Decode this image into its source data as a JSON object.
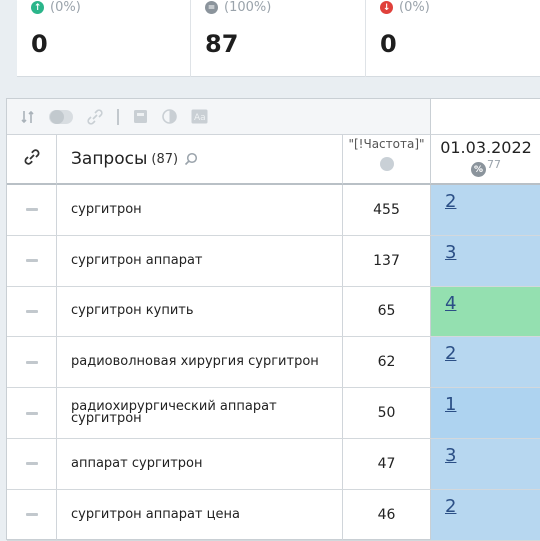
{
  "summary": [
    {
      "icon": "arrow-up-icon",
      "percent": "(0%)",
      "value": "0",
      "color": "#2bb58a"
    },
    {
      "icon": "equal-icon",
      "percent": "(100%)",
      "value": "87",
      "color": "#8b949c"
    },
    {
      "icon": "arrow-down-icon",
      "percent": "(0%)",
      "value": "0",
      "color": "#e0413b"
    }
  ],
  "table": {
    "query_header": "Запросы",
    "query_count": "(87)",
    "freq_header": "\"[!Частота]\"",
    "date_header": "01.03.2022",
    "date_pct_icon": "%",
    "date_pct_value": "77",
    "rows": [
      {
        "query": "сургитрон",
        "freq": "455",
        "pos": "2",
        "pos_color": "#b7d7f0"
      },
      {
        "query": "сургитрон аппарат",
        "freq": "137",
        "pos": "3",
        "pos_color": "#b7d7f0"
      },
      {
        "query": "сургитрон купить",
        "freq": "65",
        "pos": "4",
        "pos_color": "#94e0b0"
      },
      {
        "query": "радиоволновая хирургия сургитрон",
        "freq": "62",
        "pos": "2",
        "pos_color": "#b7d7f0"
      },
      {
        "query": "радиохирургический аппарат сургитрон",
        "freq": "50",
        "pos": "1",
        "pos_color": "#aed3f0"
      },
      {
        "query": "аппарат сургитрон",
        "freq": "47",
        "pos": "3",
        "pos_color": "#b7d7f0"
      },
      {
        "query": "сургитрон аппарат цена",
        "freq": "46",
        "pos": "2",
        "pos_color": "#b7d7f0"
      }
    ]
  }
}
